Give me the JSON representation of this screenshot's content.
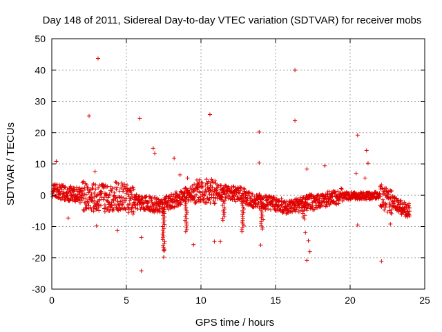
{
  "chart_data": {
    "type": "scatter",
    "title": "Day 148 of 2011, Sidereal Day-to-day VTEC variation (SDTVAR) for receiver mobs",
    "xlabel": "GPS time / hours",
    "ylabel": "SDTVAR / TECUs",
    "xlim": [
      0,
      25
    ],
    "ylim": [
      -30,
      50
    ],
    "xticks": [
      "0",
      "5",
      "10",
      "15",
      "20",
      "25"
    ],
    "yticks": [
      "-30",
      "-20",
      "-10",
      "0",
      "10",
      "20",
      "30",
      "40",
      "50"
    ],
    "grid": true,
    "marker": "+",
    "color": "#e00000",
    "series": [
      {
        "name": "SDTVAR",
        "outliers": [
          [
            0.3,
            10.8
          ],
          [
            1.1,
            -7.3
          ],
          [
            2.5,
            25.3
          ],
          [
            2.9,
            7.6
          ],
          [
            3.1,
            43.7
          ],
          [
            3.0,
            -9.8
          ],
          [
            4.4,
            -11.3
          ],
          [
            5.9,
            24.5
          ],
          [
            6.0,
            -13.5
          ],
          [
            6.0,
            -24.2
          ],
          [
            6.8,
            15.0
          ],
          [
            6.9,
            13.4
          ],
          [
            7.5,
            -17.5
          ],
          [
            7.5,
            -19.8
          ],
          [
            8.2,
            11.8
          ],
          [
            8.6,
            6.5
          ],
          [
            9.1,
            5.5
          ],
          [
            9.5,
            -15.8
          ],
          [
            10.6,
            25.8
          ],
          [
            10.9,
            -14.8
          ],
          [
            11.3,
            -14.8
          ],
          [
            13.9,
            20.2
          ],
          [
            13.9,
            10.3
          ],
          [
            14.0,
            -15.9
          ],
          [
            16.3,
            40.0
          ],
          [
            16.3,
            23.8
          ],
          [
            17.1,
            8.4
          ],
          [
            17.0,
            -12.0
          ],
          [
            17.2,
            -14.5
          ],
          [
            17.3,
            -18.0
          ],
          [
            17.1,
            -20.8
          ],
          [
            18.3,
            9.4
          ],
          [
            20.5,
            19.2
          ],
          [
            20.5,
            -9.5
          ],
          [
            21.1,
            14.3
          ],
          [
            21.2,
            10.2
          ],
          [
            22.1,
            -21.1
          ],
          [
            22.7,
            -9.2
          ],
          [
            20.4,
            7.0
          ],
          [
            21.0,
            5.5
          ]
        ]
      }
    ]
  }
}
